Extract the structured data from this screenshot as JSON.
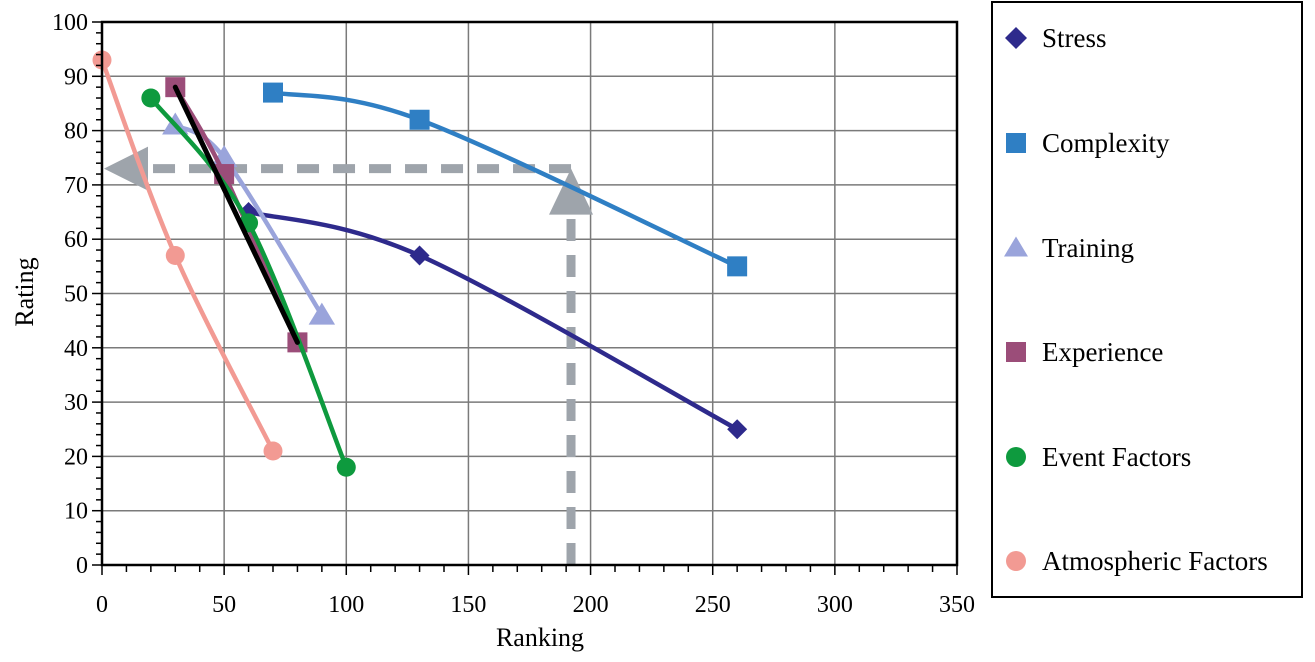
{
  "chart_data": {
    "type": "line",
    "xlabel": "Ranking",
    "ylabel": "Rating",
    "xlim": [
      0,
      350
    ],
    "ylim": [
      0,
      100
    ],
    "x_ticks": [
      "0",
      "50",
      "100",
      "150",
      "200",
      "250",
      "300",
      "350"
    ],
    "y_ticks": [
      "0",
      "10",
      "20",
      "30",
      "40",
      "50",
      "60",
      "70",
      "80",
      "90",
      "100"
    ],
    "grid": true,
    "legend_position": "right",
    "series": [
      {
        "name": "Stress",
        "marker": "diamond",
        "color": "#2e2a8c",
        "points": [
          [
            60,
            65
          ],
          [
            130,
            57
          ],
          [
            260,
            25
          ]
        ]
      },
      {
        "name": "Complexity",
        "marker": "square",
        "color": "#2f7fc4",
        "points": [
          [
            70,
            87
          ],
          [
            130,
            82
          ],
          [
            260,
            55
          ]
        ]
      },
      {
        "name": "Training",
        "marker": "triangle",
        "color": "#9aa4db",
        "points": [
          [
            30,
            81
          ],
          [
            50,
            75
          ],
          [
            90,
            46
          ]
        ]
      },
      {
        "name": "Experience",
        "marker": "square",
        "color": "#9b4d79",
        "points": [
          [
            30,
            88
          ],
          [
            50,
            72
          ],
          [
            80,
            41
          ]
        ]
      },
      {
        "name": "Event Factors",
        "marker": "circle",
        "color": "#0e9a3e",
        "points": [
          [
            20,
            86
          ],
          [
            60,
            63
          ],
          [
            100,
            18
          ]
        ]
      },
      {
        "name": "Atmospheric Factors",
        "marker": "circle",
        "color": "#f29a93",
        "points": [
          [
            0,
            93
          ],
          [
            30,
            57
          ],
          [
            70,
            21
          ]
        ]
      }
    ],
    "trend_line": {
      "color": "#000000",
      "points": [
        [
          30,
          88
        ],
        [
          80,
          41
        ]
      ]
    },
    "annotations": {
      "color": "#9ea4ab",
      "vertical_arrow": {
        "x": 192,
        "from_y": 0,
        "to_y": 73
      },
      "horizontal_arrow": {
        "y": 73,
        "from_x": 192,
        "to_x": 0
      }
    }
  }
}
